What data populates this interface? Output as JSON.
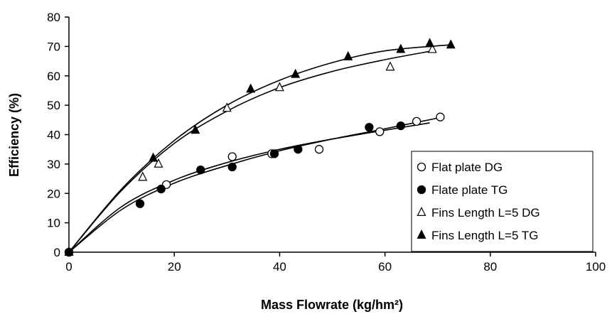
{
  "chart_data": {
    "type": "scatter",
    "xlabel": "Mass Flowrate (kg/hm²)",
    "ylabel": "Efficiency (%)",
    "xlim": [
      0,
      100
    ],
    "ylim": [
      0,
      80
    ],
    "xticks": [
      0,
      20,
      40,
      60,
      80,
      100
    ],
    "yticks": [
      0,
      10,
      20,
      30,
      40,
      50,
      60,
      70,
      80
    ],
    "grid": false,
    "legend_position": "bottom-right",
    "series": [
      {
        "name": "Flat plate DG",
        "marker": "circle-open",
        "points": [
          [
            0,
            0
          ],
          [
            18.5,
            23
          ],
          [
            31,
            32.5
          ],
          [
            38.5,
            33.5
          ],
          [
            47.5,
            35
          ],
          [
            59,
            41
          ],
          [
            66,
            44.5
          ],
          [
            70.5,
            46
          ]
        ],
        "fit": [
          [
            0,
            0
          ],
          [
            10,
            14.5
          ],
          [
            20,
            23.5
          ],
          [
            30,
            29.5
          ],
          [
            40,
            34.5
          ],
          [
            50,
            38.5
          ],
          [
            60,
            42
          ],
          [
            70.5,
            45.8
          ]
        ]
      },
      {
        "name": "Flate plate TG",
        "marker": "circle-filled",
        "points": [
          [
            0,
            0
          ],
          [
            13.5,
            16.5
          ],
          [
            17.5,
            21.5
          ],
          [
            25,
            28
          ],
          [
            31,
            29
          ],
          [
            39,
            33.5
          ],
          [
            43.5,
            35
          ],
          [
            57,
            42.5
          ],
          [
            63,
            43
          ]
        ],
        "fit": [
          [
            0,
            0
          ],
          [
            10,
            15.5
          ],
          [
            20,
            24.5
          ],
          [
            30,
            30.5
          ],
          [
            40,
            35
          ],
          [
            50,
            38.5
          ],
          [
            60,
            41.5
          ],
          [
            68.5,
            44
          ]
        ]
      },
      {
        "name": "Fins Length L=5 DG",
        "marker": "triangle-open",
        "points": [
          [
            0,
            0
          ],
          [
            14,
            25.5
          ],
          [
            17,
            30
          ],
          [
            30,
            49
          ],
          [
            40,
            56
          ],
          [
            61,
            63
          ],
          [
            69,
            69
          ]
        ],
        "fit": [
          [
            0,
            0
          ],
          [
            10,
            21
          ],
          [
            20,
            37
          ],
          [
            30,
            48
          ],
          [
            40,
            56
          ],
          [
            50,
            61.5
          ],
          [
            60,
            65.5
          ],
          [
            69,
            68.5
          ]
        ]
      },
      {
        "name": "Fins Length L=5 TG",
        "marker": "triangle-filled",
        "points": [
          [
            0,
            0
          ],
          [
            16,
            32
          ],
          [
            24,
            41.5
          ],
          [
            34.5,
            55.5
          ],
          [
            43,
            60.5
          ],
          [
            53,
            66.5
          ],
          [
            63,
            69
          ],
          [
            68.5,
            71
          ],
          [
            72.5,
            70.5
          ]
        ],
        "fit": [
          [
            0,
            0
          ],
          [
            10,
            21.5
          ],
          [
            20,
            38
          ],
          [
            30,
            50
          ],
          [
            40,
            58.5
          ],
          [
            50,
            64.5
          ],
          [
            60,
            68.5
          ],
          [
            72,
            70.5
          ]
        ]
      }
    ]
  }
}
